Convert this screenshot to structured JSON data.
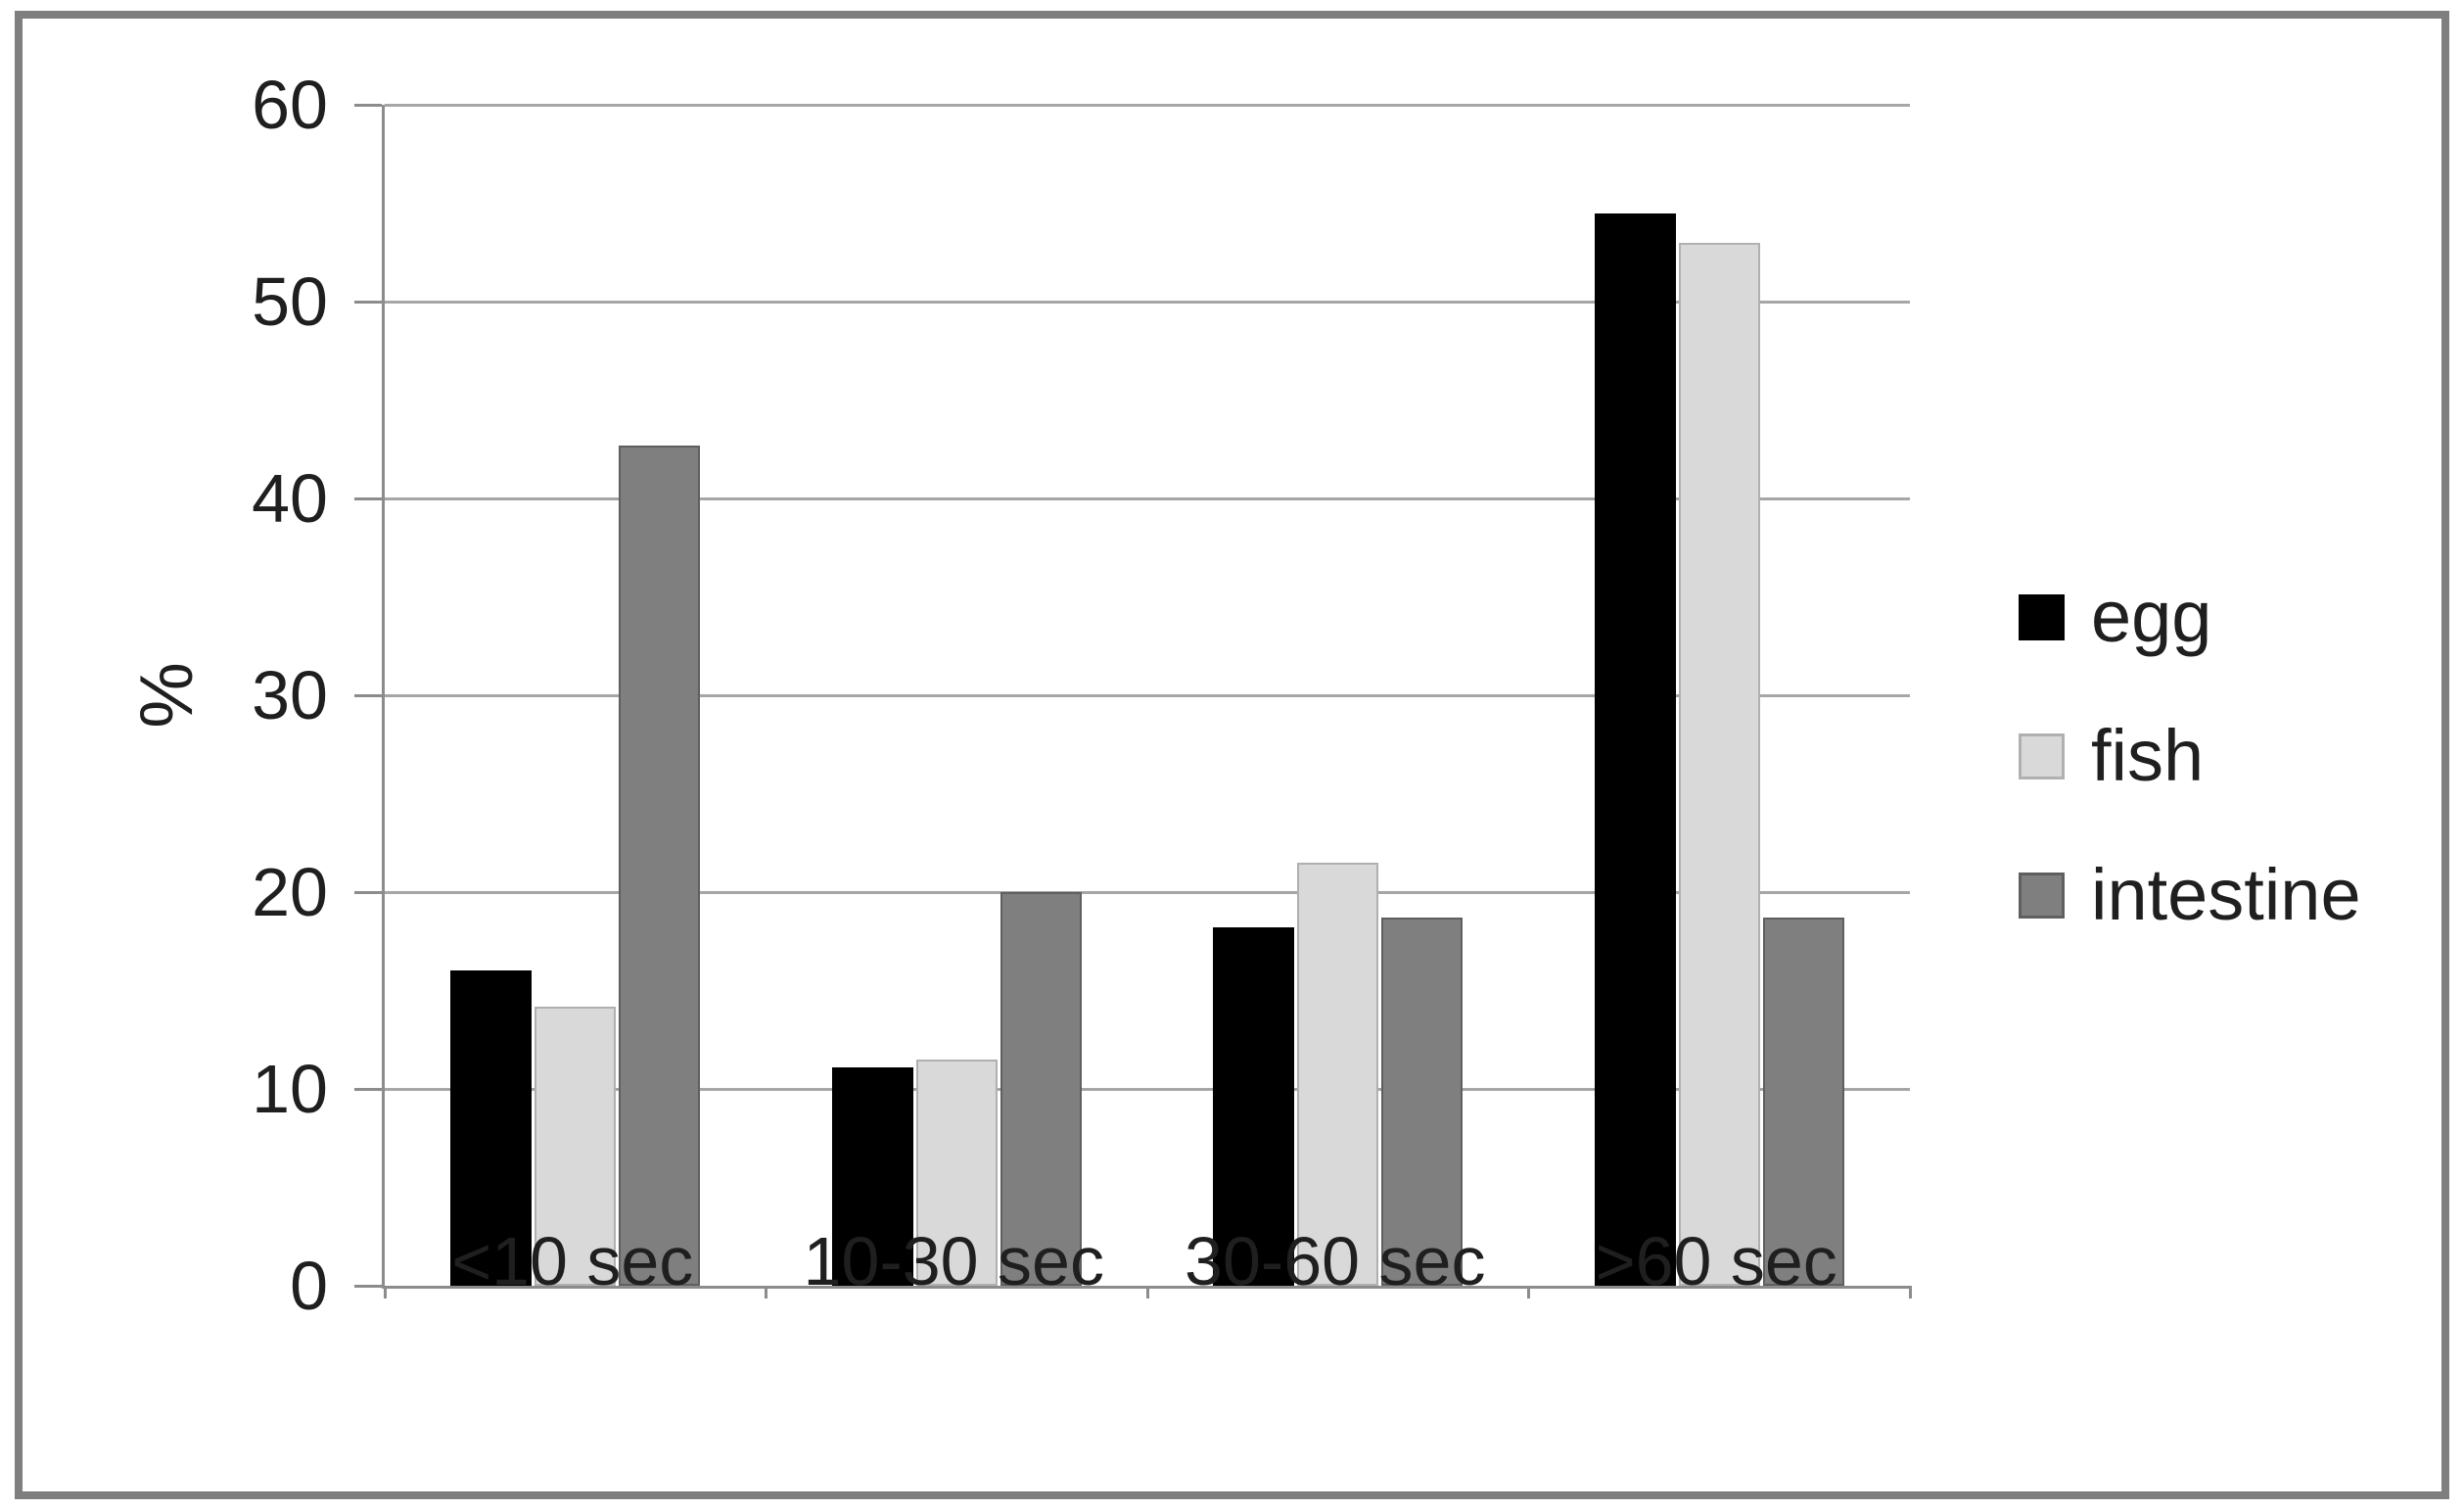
{
  "figure": {
    "background": "#ffffff",
    "frame_border_color": "#7f7f7f",
    "gridline_color": "#a6a6a6",
    "axis_color": "#8c8c8c",
    "text_color": "#1f1f1f"
  },
  "chart_data": {
    "type": "bar",
    "title": "",
    "xlabel": "",
    "ylabel": "%",
    "ylim": [
      0,
      60
    ],
    "yticks": [
      0,
      10,
      20,
      30,
      40,
      50,
      60
    ],
    "grid": true,
    "legend_position": "right",
    "categories": [
      "<10 sec",
      "10-30 sec",
      "30-60 sec",
      ">60 sec"
    ],
    "series": [
      {
        "name": "egg",
        "color": "#000000",
        "border": "#000000",
        "values": [
          16.0,
          11.1,
          18.2,
          54.5
        ]
      },
      {
        "name": "fish",
        "color": "#d9d9d9",
        "border": "#b0b0b0",
        "values": [
          14.2,
          11.5,
          21.5,
          53.0
        ]
      },
      {
        "name": "intestine",
        "color": "#7f7f7f",
        "border": "#5f5f5f",
        "values": [
          42.7,
          20.0,
          18.7,
          18.7
        ]
      }
    ]
  }
}
